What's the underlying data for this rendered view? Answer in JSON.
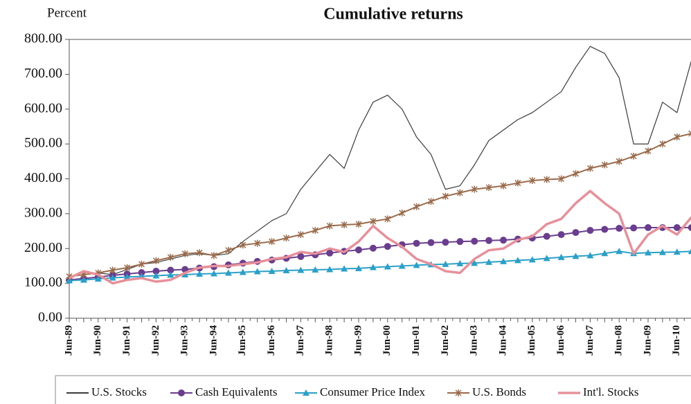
{
  "chart_data": {
    "type": "line",
    "title": "Cumulative returns",
    "y_axis_label": "Percent",
    "categories": [
      "Jun-89",
      null,
      "Jun-90",
      null,
      "Jun-91",
      null,
      "Jun-92",
      null,
      "Jun-93",
      null,
      "Jun-94",
      null,
      "Jun-95",
      null,
      "Jun-96",
      null,
      "Jun-97",
      null,
      "Jun-98",
      null,
      "Jun-99",
      null,
      "Jun-00",
      null,
      "Jun-01",
      null,
      "Jun-02",
      null,
      "Jun-03",
      null,
      "Jun-04",
      null,
      "Jun-05",
      null,
      "Jun-06",
      null,
      "Jun-07",
      null,
      "Jun-08",
      null,
      "Jun-09",
      null,
      "Jun-10",
      null
    ],
    "series": [
      {
        "name": "U.S. Stocks",
        "color": "#3a3a3a",
        "marker": "none",
        "values": [
          120,
          125,
          130,
          125,
          140,
          155,
          160,
          170,
          180,
          185,
          180,
          185,
          220,
          250,
          280,
          300,
          370,
          420,
          470,
          430,
          540,
          620,
          640,
          600,
          520,
          470,
          370,
          380,
          440,
          510,
          540,
          570,
          590,
          620,
          650,
          720,
          780,
          760,
          690,
          500,
          500,
          620,
          590,
          740
        ]
      },
      {
        "name": "Cash Equivalents",
        "color": "#6a3d8f",
        "marker": "circle",
        "values": [
          110,
          114,
          118,
          123,
          127,
          131,
          135,
          138,
          140,
          144,
          148,
          153,
          158,
          163,
          167,
          172,
          177,
          182,
          187,
          192,
          196,
          201,
          206,
          211,
          215,
          217,
          218,
          220,
          221,
          223,
          224,
          227,
          230,
          235,
          240,
          246,
          252,
          255,
          258,
          259,
          260,
          260,
          260,
          260
        ]
      },
      {
        "name": "Consumer Price Index",
        "color": "#2aa0c8",
        "marker": "triangle",
        "values": [
          108,
          110,
          113,
          116,
          118,
          120,
          122,
          124,
          125,
          127,
          128,
          130,
          132,
          134,
          135,
          137,
          138,
          139,
          140,
          142,
          143,
          146,
          148,
          150,
          152,
          154,
          155,
          157,
          158,
          161,
          163,
          166,
          168,
          172,
          175,
          178,
          180,
          186,
          192,
          186,
          188,
          189,
          190,
          192
        ]
      },
      {
        "name": "U.S. Bonds",
        "color": "#9a6a4a",
        "marker": "star",
        "values": [
          120,
          125,
          130,
          138,
          145,
          155,
          165,
          175,
          185,
          188,
          180,
          195,
          210,
          215,
          220,
          230,
          240,
          252,
          265,
          268,
          270,
          278,
          285,
          302,
          320,
          335,
          350,
          360,
          370,
          375,
          380,
          388,
          395,
          398,
          400,
          415,
          430,
          440,
          450,
          465,
          480,
          500,
          520,
          530
        ]
      },
      {
        "name": "Int'l. Stocks",
        "color": "#e8909a",
        "marker": "none",
        "values": [
          115,
          135,
          125,
          100,
          110,
          115,
          105,
          110,
          130,
          145,
          150,
          150,
          155,
          160,
          170,
          175,
          190,
          185,
          200,
          190,
          220,
          265,
          230,
          205,
          170,
          155,
          135,
          130,
          170,
          195,
          200,
          225,
          235,
          270,
          285,
          330,
          365,
          330,
          300,
          185,
          240,
          265,
          240,
          290
        ]
      }
    ],
    "ylim": [
      0,
      800
    ],
    "yticks": [
      {
        "value": 0,
        "label": "0.00"
      },
      {
        "value": 100,
        "label": "100.00"
      },
      {
        "value": 200,
        "label": "200.00"
      },
      {
        "value": 300,
        "label": "300.00"
      },
      {
        "value": 400,
        "label": "400.00"
      },
      {
        "value": 500,
        "label": "500.00"
      },
      {
        "value": 600,
        "label": "600.00"
      },
      {
        "value": 700,
        "label": "700.00"
      },
      {
        "value": 800,
        "label": "800.00"
      }
    ],
    "grid": false,
    "legend": "bottom"
  }
}
